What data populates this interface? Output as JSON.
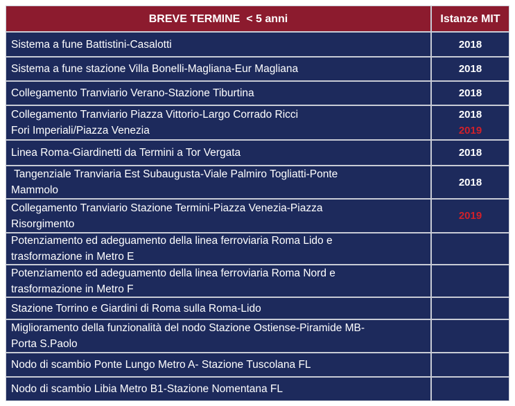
{
  "table": {
    "header": [
      "BREVE TERMINE  < 5 anni",
      "Istanze MIT"
    ],
    "year_colors": {
      "2018": "#ffffff",
      "2019": "#d0202a"
    },
    "rows": [
      {
        "lines": [
          "Sistema a fune Battistini-Casalotti"
        ],
        "years": [
          "2018"
        ]
      },
      {
        "lines": [
          "Sistema a fune stazione Villa Bonelli-Magliana-Eur Magliana"
        ],
        "years": [
          "2018"
        ]
      },
      {
        "lines": [
          "Collegamento Tranviario Verano-Stazione Tiburtina"
        ],
        "years": [
          "2018"
        ]
      },
      {
        "lines": [
          "Collegamento Tranviario Piazza Vittorio-Largo Corrado Ricci",
          "Fori Imperiali/Piazza Venezia"
        ],
        "years": [
          "2018",
          "2019"
        ]
      },
      {
        "lines": [
          "Linea Roma-Giardinetti da Termini a Tor Vergata"
        ],
        "years": [
          "2018"
        ]
      },
      {
        "lines": [
          " Tangenziale Tranviaria Est Subaugusta-Viale Palmiro Togliatti-Ponte",
          "Mammolo"
        ],
        "years": [
          "2018"
        ]
      },
      {
        "lines": [
          "Collegamento Tranviario Stazione Termini-Piazza Venezia-Piazza",
          "Risorgimento"
        ],
        "years": [
          "2019"
        ]
      },
      {
        "lines": [
          "Potenziamento ed adeguamento della linea ferroviaria Roma Lido e",
          "trasformazione in Metro E"
        ],
        "years": []
      },
      {
        "lines": [
          "Potenziamento ed adeguamento della linea ferroviaria Roma Nord e",
          "trasformazione in Metro F"
        ],
        "years": []
      },
      {
        "lines": [
          "Stazione Torrino e Giardini di Roma sulla Roma-Lido"
        ],
        "years": []
      },
      {
        "lines": [
          "Miglioramento della funzionalità del nodo Stazione Ostiense-Piramide MB-",
          "Porta S.Paolo"
        ],
        "years": []
      },
      {
        "lines": [
          "Nodo di scambio Ponte Lungo Metro A- Stazione Tuscolana FL"
        ],
        "years": []
      },
      {
        "lines": [
          "Nodo di scambio Libia Metro B1-Stazione Nomentana FL"
        ],
        "years": []
      }
    ]
  }
}
